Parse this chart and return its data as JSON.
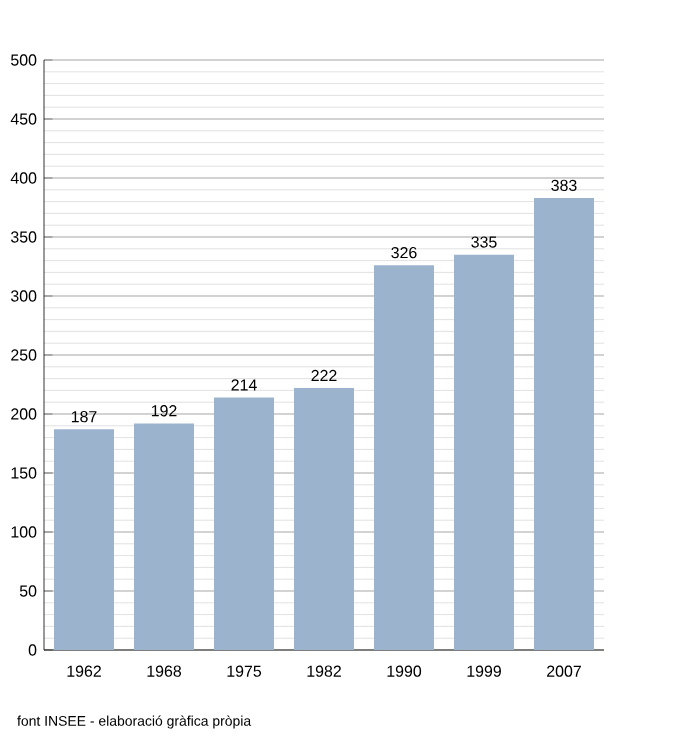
{
  "chart_data": {
    "type": "bar",
    "categories": [
      "1962",
      "1968",
      "1975",
      "1982",
      "1990",
      "1999",
      "2007"
    ],
    "values": [
      187,
      192,
      214,
      222,
      326,
      335,
      383
    ],
    "color": "#9bb3cc",
    "ylim": [
      0,
      500
    ],
    "yticks": [
      0,
      50,
      100,
      150,
      200,
      250,
      300,
      350,
      400,
      450,
      500
    ],
    "grid": "y",
    "data_labels": true,
    "annotations": [
      "font INSEE - elaboració gràfica pròpia"
    ]
  }
}
